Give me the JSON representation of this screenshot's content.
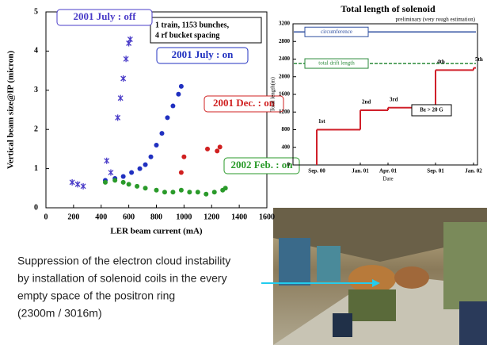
{
  "chart_data": [
    {
      "type": "scatter",
      "x_label": "LER beam current (mA)",
      "y_label": "Vertical beam size@IP (micron)",
      "xlim": [
        0,
        1600
      ],
      "xticks": [
        0,
        200,
        400,
        600,
        800,
        1000,
        1200,
        1400,
        1600
      ],
      "ylim": [
        0,
        5
      ],
      "yticks": [
        0,
        1,
        2,
        3,
        4,
        5
      ],
      "annotation": [
        "1 train, 1153 bunches,",
        "4 rf bucket spacing"
      ],
      "series": [
        {
          "name": "2001 July : off",
          "color": "#4a3cc8",
          "marker": "x",
          "x": [
            190,
            230,
            270,
            440,
            470,
            520,
            540,
            560,
            580,
            600,
            610
          ],
          "values": [
            0.65,
            0.6,
            0.55,
            1.2,
            0.9,
            2.3,
            2.8,
            3.3,
            3.8,
            4.2,
            4.3
          ]
        },
        {
          "name": "2001 July : on",
          "color": "#2030c0",
          "marker": "circle",
          "x": [
            430,
            500,
            560,
            620,
            680,
            720,
            760,
            800,
            840,
            880,
            920,
            960,
            980
          ],
          "values": [
            0.7,
            0.75,
            0.8,
            0.9,
            1.0,
            1.1,
            1.3,
            1.6,
            1.9,
            2.3,
            2.6,
            2.9,
            3.1
          ]
        },
        {
          "name": "2001 Dec. : on",
          "color": "#d02020",
          "marker": "circle",
          "x": [
            980,
            1000,
            1170,
            1240,
            1260
          ],
          "values": [
            0.9,
            1.3,
            1.5,
            1.45,
            1.55
          ]
        },
        {
          "name": "2002 Feb. : on",
          "color": "#2a9a2a",
          "marker": "circle",
          "x": [
            430,
            500,
            560,
            600,
            660,
            720,
            800,
            860,
            920,
            980,
            1040,
            1100,
            1160,
            1220,
            1280,
            1300
          ],
          "values": [
            0.65,
            0.7,
            0.65,
            0.6,
            0.55,
            0.5,
            0.45,
            0.4,
            0.4,
            0.45,
            0.4,
            0.4,
            0.35,
            0.4,
            0.45,
            0.5
          ]
        }
      ]
    },
    {
      "type": "step",
      "title": "Total length of solenoid",
      "subtitle": "preliminary (very rough estimation)",
      "x_label": "Date",
      "y_label": "Total length(m)",
      "categories": [
        "Sep. 00",
        "Jan. 01",
        "Apr. 01",
        "Sep. 01",
        "Jan. 02"
      ],
      "values": [
        800,
        1240,
        1300,
        2150,
        2200
      ],
      "step_labels": [
        "1st",
        "2nd",
        "3rd",
        "4th",
        "5th"
      ],
      "color": "#d0202a",
      "ylim": [
        0,
        3200
      ],
      "yticks": [
        0,
        400,
        800,
        1200,
        1600,
        2000,
        2400,
        2800,
        3200
      ],
      "reference_lines": [
        {
          "label": "circumference",
          "value": 3016,
          "color": "#3050a0",
          "style": "solid"
        },
        {
          "label": "total drift length",
          "value": 2300,
          "color": "#2a8a3a",
          "style": "dashed"
        }
      ],
      "annotation": "Bz > 20 G"
    }
  ],
  "caption": [
    "Suppression of the electron cloud instability",
    "by installation of solenoid coils in the every",
    "empty space of the positron ring",
    "(2300m / 3016m)"
  ]
}
